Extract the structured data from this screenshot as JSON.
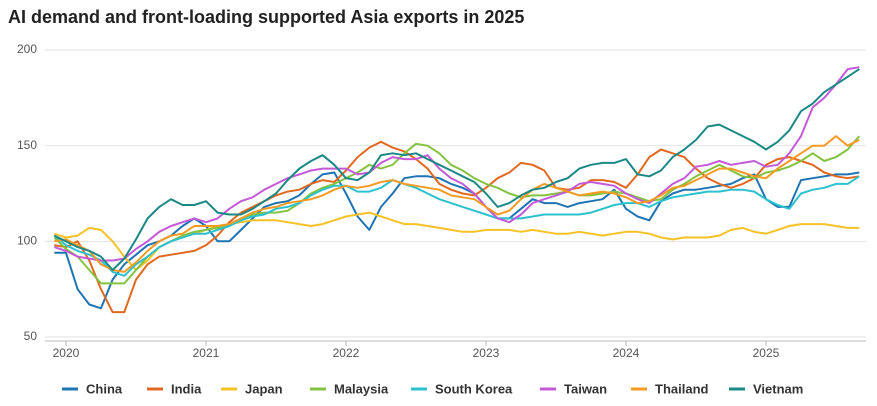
{
  "chart_data": {
    "type": "line",
    "title": "AI demand and front-loading supported Asia exports in 2025",
    "categories": [
      null,
      "2020",
      null,
      null,
      null,
      null,
      null,
      null,
      null,
      null,
      null,
      null,
      null,
      "2021",
      null,
      null,
      null,
      null,
      null,
      null,
      null,
      null,
      null,
      null,
      null,
      "2022",
      null,
      null,
      null,
      null,
      null,
      null,
      null,
      null,
      null,
      null,
      null,
      "2023",
      null,
      null,
      null,
      null,
      null,
      null,
      null,
      null,
      null,
      null,
      null,
      "2024",
      null,
      null,
      null,
      null,
      null,
      null,
      null,
      null,
      null,
      null,
      null,
      "2025",
      null,
      null,
      null,
      null,
      null,
      null,
      null,
      null
    ],
    "ylim": [
      50,
      200
    ],
    "yticks": [
      50,
      100,
      150,
      200
    ],
    "grid": true,
    "series": [
      {
        "name": "China",
        "color": "#1f74b4",
        "values": [
          94,
          94,
          75,
          67,
          65,
          80,
          88,
          93,
          98,
          100,
          103,
          108,
          112,
          108,
          100,
          100,
          106,
          112,
          118,
          120,
          121,
          124,
          130,
          135,
          136,
          125,
          113,
          106,
          118,
          125,
          133,
          134,
          134,
          133,
          130,
          128,
          125,
          118,
          112,
          112,
          117,
          122,
          120,
          120,
          118,
          120,
          121,
          122,
          127,
          117,
          113,
          111,
          121,
          125,
          127,
          127,
          128,
          129,
          130,
          133,
          135,
          122,
          118,
          118,
          132,
          133,
          134,
          135,
          135,
          136
        ]
      },
      {
        "name": "India",
        "color": "#e0691f",
        "values": [
          98,
          97,
          100,
          90,
          75,
          63,
          63,
          80,
          88,
          92,
          93,
          94,
          95,
          98,
          103,
          110,
          115,
          118,
          121,
          124,
          126,
          127,
          130,
          132,
          131,
          137,
          144,
          149,
          152,
          149,
          147,
          143,
          138,
          130,
          127,
          125,
          124,
          128,
          133,
          136,
          141,
          140,
          137,
          128,
          127,
          128,
          132,
          132,
          131,
          128,
          135,
          144,
          148,
          146,
          144,
          138,
          133,
          130,
          128,
          130,
          133,
          140,
          143,
          144,
          142,
          140,
          136,
          134,
          133,
          134
        ]
      },
      {
        "name": "Japan",
        "color": "#f5c226",
        "values": [
          104,
          102,
          103,
          107,
          106,
          100,
          92,
          85,
          90,
          97,
          100,
          103,
          104,
          106,
          108,
          109,
          110,
          111,
          111,
          111,
          110,
          109,
          108,
          109,
          111,
          113,
          114,
          115,
          113,
          111,
          109,
          109,
          108,
          107,
          106,
          105,
          105,
          106,
          106,
          106,
          105,
          106,
          105,
          104,
          104,
          105,
          104,
          103,
          104,
          105,
          105,
          104,
          102,
          101,
          102,
          102,
          102,
          103,
          106,
          107,
          105,
          104,
          106,
          108,
          109,
          109,
          109,
          108,
          107,
          107
        ]
      },
      {
        "name": "Malaysia",
        "color": "#84c341",
        "values": [
          102,
          96,
          92,
          85,
          78,
          78,
          78,
          85,
          92,
          97,
          100,
          103,
          105,
          106,
          107,
          108,
          112,
          114,
          115,
          115,
          116,
          120,
          125,
          128,
          130,
          133,
          136,
          140,
          138,
          140,
          146,
          151,
          150,
          146,
          140,
          137,
          133,
          130,
          128,
          125,
          123,
          124,
          124,
          125,
          126,
          124,
          124,
          125,
          126,
          125,
          123,
          121,
          122,
          127,
          130,
          134,
          137,
          140,
          137,
          134,
          133,
          136,
          137,
          139,
          142,
          146,
          142,
          144,
          148,
          155
        ]
      },
      {
        "name": "South Korea",
        "color": "#2bc1cf",
        "values": [
          103,
          98,
          95,
          93,
          90,
          84,
          82,
          88,
          92,
          97,
          100,
          102,
          104,
          104,
          106,
          108,
          111,
          113,
          114,
          117,
          118,
          120,
          124,
          127,
          129,
          129,
          126,
          126,
          128,
          132,
          130,
          128,
          125,
          122,
          120,
          118,
          116,
          114,
          112,
          112,
          112,
          113,
          114,
          114,
          114,
          114,
          115,
          117,
          119,
          120,
          120,
          118,
          121,
          123,
          124,
          125,
          126,
          126,
          127,
          127,
          126,
          122,
          119,
          117,
          125,
          127,
          128,
          130,
          130,
          134
        ]
      },
      {
        "name": "Taiwan",
        "color": "#c45ad8",
        "values": [
          97,
          95,
          92,
          91,
          90,
          90,
          91,
          96,
          100,
          105,
          108,
          110,
          112,
          110,
          112,
          117,
          121,
          123,
          127,
          130,
          133,
          135,
          137,
          138,
          138,
          138,
          135,
          136,
          141,
          144,
          143,
          143,
          145,
          138,
          133,
          130,
          125,
          118,
          112,
          110,
          114,
          120,
          122,
          124,
          126,
          130,
          131,
          130,
          129,
          125,
          122,
          120,
          125,
          130,
          133,
          139,
          140,
          142,
          140,
          141,
          142,
          139,
          140,
          146,
          155,
          170,
          175,
          182,
          190,
          191
        ]
      },
      {
        "name": "Thailand",
        "color": "#f59a22",
        "values": [
          100,
          101,
          98,
          95,
          88,
          85,
          84,
          89,
          95,
          100,
          103,
          104,
          108,
          108,
          108,
          109,
          112,
          115,
          117,
          118,
          120,
          121,
          122,
          124,
          127,
          129,
          128,
          129,
          131,
          132,
          130,
          129,
          128,
          127,
          124,
          123,
          122,
          118,
          114,
          116,
          122,
          127,
          130,
          128,
          126,
          124,
          125,
          126,
          125,
          123,
          120,
          121,
          124,
          128,
          129,
          132,
          135,
          138,
          138,
          136,
          134,
          133,
          138,
          142,
          146,
          150,
          150,
          155,
          150,
          153
        ]
      },
      {
        "name": "Vietnam",
        "color": "#1a8985",
        "values": [
          103,
          100,
          97,
          95,
          92,
          85,
          91,
          101,
          112,
          118,
          122,
          119,
          119,
          121,
          115,
          114,
          114,
          117,
          121,
          125,
          132,
          138,
          142,
          145,
          140,
          133,
          132,
          136,
          145,
          146,
          145,
          146,
          143,
          140,
          137,
          134,
          131,
          125,
          118,
          120,
          124,
          127,
          128,
          131,
          133,
          138,
          140,
          141,
          141,
          143,
          135,
          134,
          137,
          144,
          148,
          153,
          160,
          161,
          158,
          155,
          152,
          148,
          152,
          158,
          168,
          172,
          178,
          182,
          186,
          190
        ]
      }
    ]
  }
}
